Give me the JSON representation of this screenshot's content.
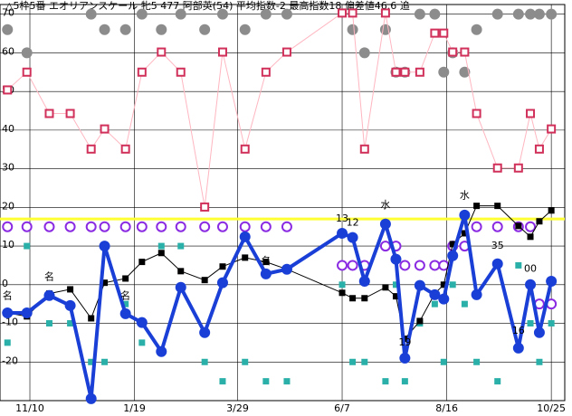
{
  "chart_data": {
    "type": "line",
    "title": "△5枠5番 エオリアンスケール 牝5 477 阿部英(54) 平均指数-2 最高指数18 偏差値46.6 追",
    "xlim": [
      -20,
      358
    ],
    "ylim": [
      -30,
      72.5
    ],
    "xticks": [
      {
        "value": 0,
        "label": "11/10"
      },
      {
        "value": 70,
        "label": "1/19"
      },
      {
        "value": 139,
        "label": "3/29"
      },
      {
        "value": 209,
        "label": "6/7"
      },
      {
        "value": 279,
        "label": "8/16"
      },
      {
        "value": 349,
        "label": "10/25"
      }
    ],
    "yticks": [
      -20,
      -10,
      0,
      10,
      20,
      30,
      40,
      50,
      60,
      70
    ],
    "grid": true,
    "reference_line": {
      "value": 17,
      "color": "#ffff33"
    },
    "x": [
      -15,
      -2,
      13,
      27,
      41,
      50,
      64,
      75,
      88,
      101,
      117,
      129,
      144,
      158,
      172,
      209,
      216,
      224,
      238,
      245,
      251,
      261,
      271,
      277,
      283,
      291,
      299,
      313,
      327,
      335,
      341,
      349
    ],
    "series": [
      {
        "style": "markers",
        "marker": "circle-filled",
        "color": "#8c8c8c",
        "values": [
          66,
          60,
          null,
          null,
          70,
          66,
          66,
          70,
          66,
          70,
          66,
          70,
          66,
          70,
          70,
          null,
          66,
          60,
          66,
          55,
          55,
          70,
          70,
          55,
          60,
          55,
          66,
          70,
          70,
          70,
          70,
          70
        ]
      },
      {
        "style": "line",
        "marker": "square-open",
        "color": "#d0305a",
        "line_color": "#ffb6c1",
        "width": 1,
        "values": [
          50.4,
          55,
          44.3,
          44.3,
          35.1,
          40.3,
          35.1,
          55,
          60.2,
          55,
          20.1,
          60.2,
          35.1,
          55,
          60.2,
          70.3,
          70.3,
          35.1,
          70.3,
          55,
          55,
          55,
          65.1,
          65.1,
          60.2,
          60.2,
          44.3,
          30.2,
          30.2,
          44.3,
          35.1,
          40.3
        ]
      },
      {
        "style": "markers",
        "marker": "square-filled",
        "color": "#2ab0a8",
        "values": [
          -15,
          10,
          -10,
          -10,
          -20,
          -20,
          -5,
          -15,
          10,
          10,
          -20,
          -25,
          -20,
          -25,
          -25,
          0,
          -20,
          -20,
          -25,
          0,
          -25,
          -10,
          -5,
          -20,
          0,
          -5,
          -20,
          -25,
          5,
          -10,
          -20,
          -10
        ]
      },
      {
        "style": "markers",
        "marker": "circle-open",
        "color": "#8a2be2",
        "values": [
          15,
          15,
          15,
          15,
          15,
          15,
          15,
          15,
          15,
          15,
          15,
          15,
          15,
          15,
          15,
          5,
          5,
          5,
          10,
          10,
          5,
          5,
          5,
          5,
          10,
          10,
          15,
          15,
          15,
          15,
          -5,
          -5
        ]
      },
      {
        "style": "line",
        "marker": "square-filled",
        "color": "#000000",
        "line_color": "#000000",
        "width": 1,
        "values": [
          -7.3,
          -8.2,
          -2.3,
          -1.2,
          -8.7,
          0.5,
          1.6,
          5.9,
          8.2,
          3.5,
          1.2,
          4.7,
          7,
          5.9,
          4,
          -2.1,
          -3.5,
          -3.5,
          -0.7,
          -3,
          -14,
          -9.4,
          -2.3,
          0,
          10.5,
          13.3,
          20.4,
          20.4,
          15.2,
          12.4,
          16.4,
          19.2
        ]
      },
      {
        "style": "line",
        "marker": "circle-filled",
        "color": "#1a3fd6",
        "line_color": "#1a3fd6",
        "width": 4,
        "values": [
          -7.3,
          -7.3,
          -2.8,
          -5.4,
          -29.5,
          10,
          -7.5,
          -9.8,
          -17.3,
          -0.7,
          -12.4,
          0.5,
          12.4,
          2.8,
          4,
          13.3,
          12.2,
          0.9,
          15.7,
          6.6,
          -19,
          -0.2,
          -2.6,
          -3.7,
          7.5,
          18,
          -2.6,
          5.4,
          -16.4,
          0,
          -12.4,
          0.9
        ]
      }
    ],
    "annotations": [
      {
        "text": "名",
        "x": -15,
        "y": -3
      },
      {
        "text": "名",
        "x": 13,
        "y": 2
      },
      {
        "text": "名",
        "x": 64,
        "y": -3
      },
      {
        "text": "名",
        "x": 158,
        "y": 6
      },
      {
        "text": "13",
        "x": 209,
        "y": 17
      },
      {
        "text": "12",
        "x": 216,
        "y": 16
      },
      {
        "text": "水",
        "x": 238,
        "y": 20.5
      },
      {
        "text": "19",
        "x": 251,
        "y": -15
      },
      {
        "text": "水",
        "x": 291,
        "y": 23
      },
      {
        "text": "35",
        "x": 313,
        "y": 10
      },
      {
        "text": "16",
        "x": 327,
        "y": -12
      },
      {
        "text": "00",
        "x": 335,
        "y": 4
      }
    ]
  }
}
